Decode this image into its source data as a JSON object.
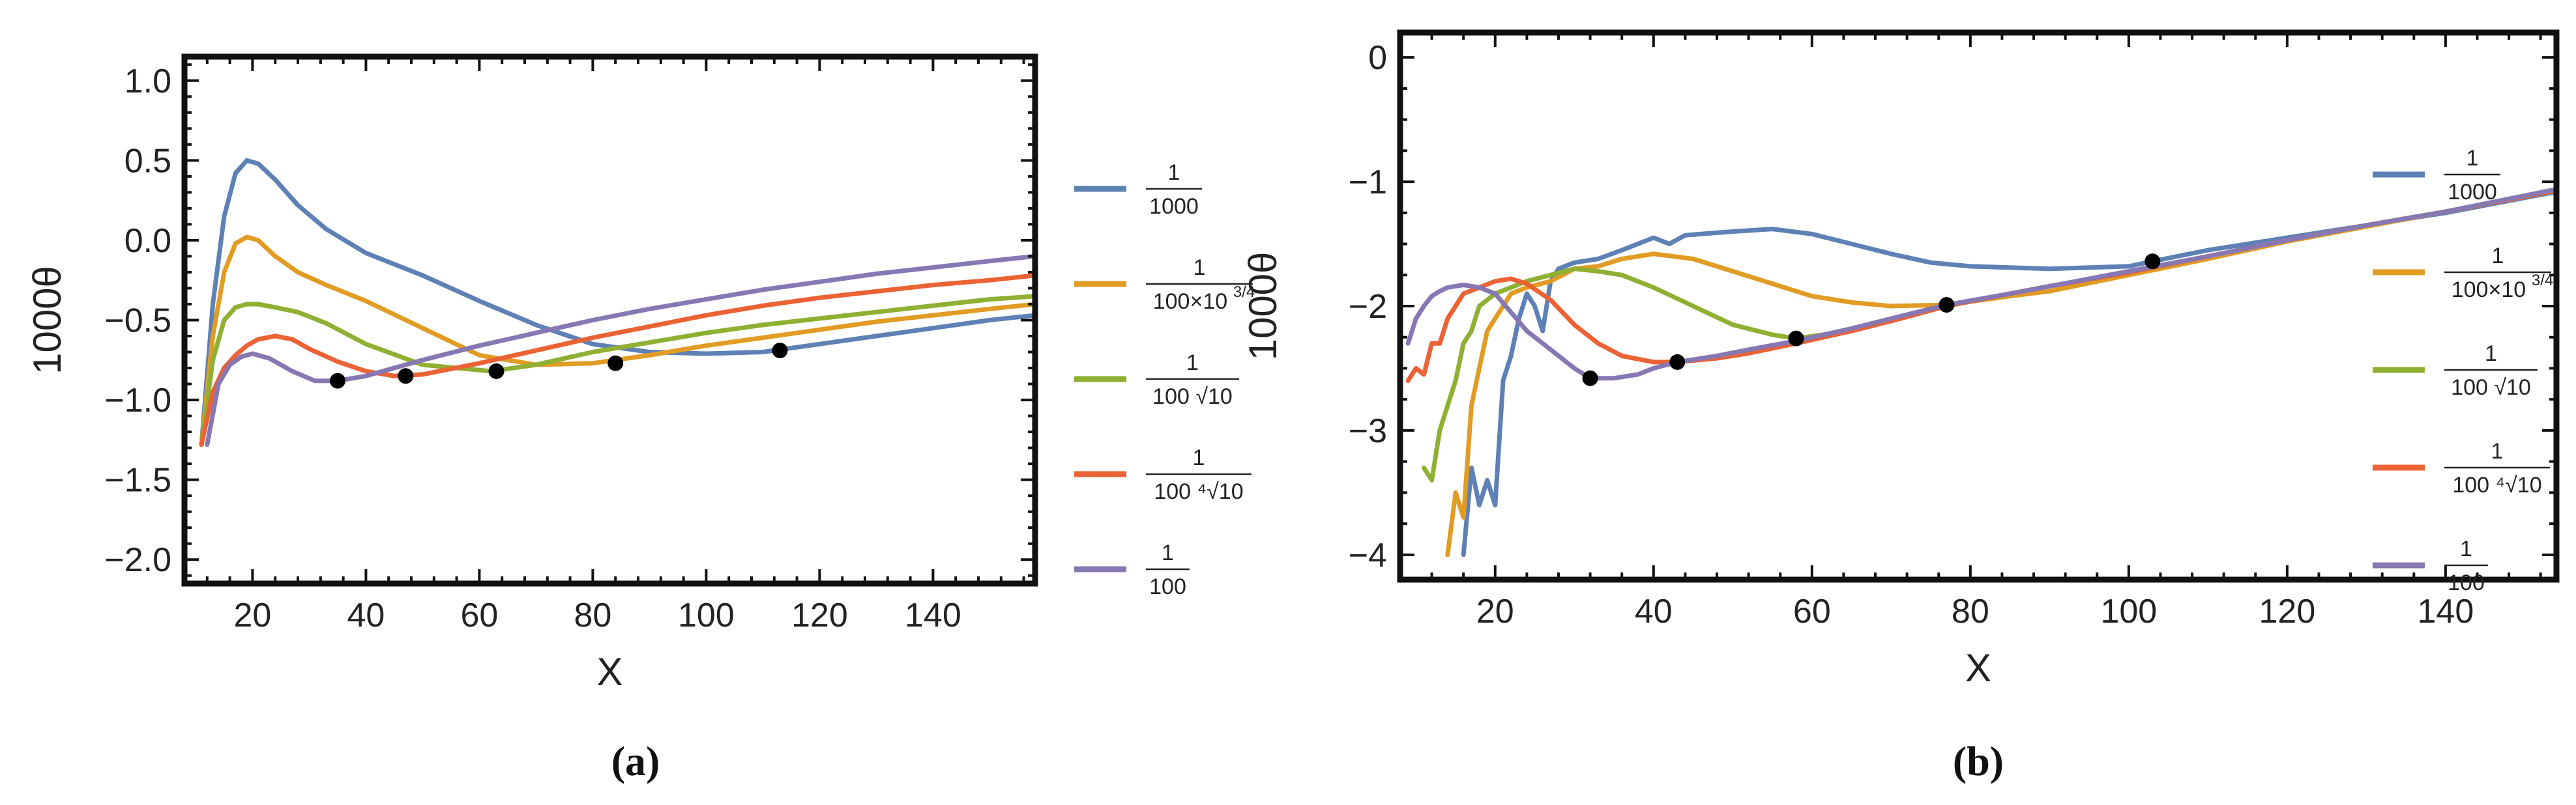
{
  "chart_data": [
    {
      "type": "line",
      "panel": "a",
      "caption": "(a)",
      "xlabel": "X",
      "ylabel": "1000θ",
      "xlim": [
        8,
        158
      ],
      "ylim": [
        -2.15,
        1.15
      ],
      "xticks": [
        20,
        40,
        60,
        80,
        100,
        120,
        140
      ],
      "yticks": [
        1.0,
        0.5,
        0.0,
        -0.5,
        -1.0,
        -1.5,
        -2.0
      ],
      "ytick_labels": [
        "1.0",
        "0.5",
        "0.0",
        "−0.5",
        "−1.0",
        "−1.5",
        "−2.0"
      ],
      "legend_position": "right",
      "series": [
        {
          "name": "1/1000",
          "legend_num": "1",
          "legend_den": "1000",
          "color": "#5e81b5",
          "x": [
            11,
            13,
            15,
            17,
            19,
            21,
            24,
            28,
            33,
            40,
            50,
            60,
            70,
            80,
            90,
            100,
            110,
            120,
            130,
            140,
            150,
            158
          ],
          "y": [
            -1.28,
            -0.4,
            0.15,
            0.42,
            0.5,
            0.48,
            0.38,
            0.22,
            0.07,
            -0.08,
            -0.22,
            -0.38,
            -0.53,
            -0.65,
            -0.7,
            -0.71,
            -0.7,
            -0.65,
            -0.6,
            -0.55,
            -0.5,
            -0.47
          ],
          "marker": {
            "x": 113,
            "y": -0.69
          }
        },
        {
          "name": "1/(100×10^{3/4})",
          "legend_num": "1",
          "legend_den": "100×10",
          "legend_exp": "3/4",
          "color": "#e19c24",
          "x": [
            11,
            13,
            15,
            17,
            19,
            21,
            24,
            28,
            33,
            40,
            50,
            60,
            70,
            80,
            90,
            100,
            110,
            120,
            130,
            140,
            150,
            158
          ],
          "y": [
            -1.28,
            -0.6,
            -0.2,
            -0.02,
            0.02,
            0.0,
            -0.1,
            -0.2,
            -0.28,
            -0.38,
            -0.55,
            -0.72,
            -0.78,
            -0.77,
            -0.72,
            -0.66,
            -0.61,
            -0.56,
            -0.51,
            -0.47,
            -0.43,
            -0.4
          ],
          "marker": {
            "x": 84,
            "y": -0.77
          }
        },
        {
          "name": "1/(100 √10)",
          "legend_num": "1",
          "legend_den": "100 √10",
          "color": "#8fb032",
          "x": [
            11,
            13,
            15,
            17,
            19,
            21,
            24,
            28,
            33,
            40,
            50,
            62,
            70,
            80,
            90,
            100,
            110,
            120,
            130,
            140,
            150,
            158
          ],
          "y": [
            -1.28,
            -0.75,
            -0.5,
            -0.42,
            -0.4,
            -0.4,
            -0.42,
            -0.45,
            -0.52,
            -0.65,
            -0.78,
            -0.82,
            -0.78,
            -0.7,
            -0.64,
            -0.58,
            -0.53,
            -0.49,
            -0.45,
            -0.41,
            -0.37,
            -0.35
          ],
          "marker": {
            "x": 63,
            "y": -0.82
          }
        },
        {
          "name": "1/(100 ⁴√10)",
          "legend_num": "1",
          "legend_den": "100 ⁴√10",
          "color": "#eb6235",
          "x": [
            11,
            13,
            15,
            17,
            19,
            21,
            24,
            27,
            30,
            35,
            40,
            45,
            50,
            60,
            70,
            80,
            90,
            100,
            110,
            120,
            130,
            140,
            150,
            158
          ],
          "y": [
            -1.28,
            -0.95,
            -0.8,
            -0.72,
            -0.66,
            -0.62,
            -0.6,
            -0.62,
            -0.68,
            -0.76,
            -0.82,
            -0.85,
            -0.84,
            -0.77,
            -0.69,
            -0.61,
            -0.54,
            -0.47,
            -0.41,
            -0.36,
            -0.32,
            -0.28,
            -0.25,
            -0.22
          ],
          "marker": {
            "x": 47,
            "y": -0.85
          }
        },
        {
          "name": "1/100",
          "legend_num": "1",
          "legend_den": "100",
          "color": "#8778b3",
          "x": [
            12,
            14,
            16,
            18,
            20,
            23,
            27,
            31,
            35,
            40,
            45,
            50,
            60,
            70,
            80,
            90,
            100,
            110,
            120,
            130,
            140,
            150,
            158
          ],
          "y": [
            -1.28,
            -0.9,
            -0.78,
            -0.73,
            -0.71,
            -0.74,
            -0.82,
            -0.88,
            -0.88,
            -0.85,
            -0.8,
            -0.75,
            -0.66,
            -0.58,
            -0.5,
            -0.43,
            -0.37,
            -0.31,
            -0.26,
            -0.21,
            -0.17,
            -0.13,
            -0.1
          ],
          "marker": {
            "x": 35,
            "y": -0.88
          }
        }
      ]
    },
    {
      "type": "line",
      "panel": "b",
      "caption": "(b)",
      "xlabel": "X",
      "ylabel": "1000θ",
      "xlim": [
        8,
        154
      ],
      "ylim": [
        -4.2,
        0.2
      ],
      "xticks": [
        20,
        40,
        60,
        80,
        100,
        120,
        140
      ],
      "yticks": [
        0,
        -1,
        -2,
        -3,
        -4
      ],
      "ytick_labels": [
        "0",
        "−1",
        "−2",
        "−3",
        "−4"
      ],
      "legend_position": "right",
      "series": [
        {
          "name": "1/1000",
          "legend_num": "1",
          "legend_den": "1000",
          "color": "#5e81b5",
          "x": [
            16,
            17,
            18,
            19,
            20,
            21,
            22,
            23,
            24,
            25,
            26,
            27,
            28,
            30,
            33,
            36,
            40,
            42,
            44,
            46,
            50,
            55,
            60,
            65,
            70,
            75,
            80,
            90,
            100,
            103,
            110,
            120,
            130,
            140,
            154
          ],
          "y": [
            -4.0,
            -3.3,
            -3.6,
            -3.4,
            -3.6,
            -2.6,
            -2.4,
            -2.1,
            -1.9,
            -2.0,
            -2.2,
            -1.8,
            -1.7,
            -1.65,
            -1.62,
            -1.55,
            -1.45,
            -1.5,
            -1.43,
            -1.42,
            -1.4,
            -1.38,
            -1.42,
            -1.5,
            -1.58,
            -1.65,
            -1.68,
            -1.7,
            -1.68,
            -1.64,
            -1.55,
            -1.45,
            -1.35,
            -1.25,
            -1.08
          ],
          "marker": {
            "x": 103,
            "y": -1.64
          }
        },
        {
          "name": "1/(100×10^{3/4})",
          "legend_num": "1",
          "legend_den": "100×10",
          "legend_exp": "3/4",
          "color": "#e19c24",
          "x": [
            14,
            15,
            16,
            17,
            18,
            19,
            20,
            22,
            24,
            27,
            30,
            33,
            36,
            40,
            45,
            50,
            55,
            60,
            65,
            70,
            77,
            85,
            90,
            100,
            110,
            120,
            130,
            140,
            154
          ],
          "y": [
            -4.0,
            -3.5,
            -3.7,
            -2.8,
            -2.5,
            -2.2,
            -2.1,
            -1.9,
            -1.85,
            -1.8,
            -1.7,
            -1.68,
            -1.62,
            -1.58,
            -1.62,
            -1.72,
            -1.82,
            -1.92,
            -1.97,
            -2.0,
            -1.99,
            -1.92,
            -1.88,
            -1.75,
            -1.62,
            -1.48,
            -1.36,
            -1.24,
            -1.07
          ],
          "marker": {
            "x": 77,
            "y": -1.99
          }
        },
        {
          "name": "1/(100 √10)",
          "legend_num": "1",
          "legend_den": "100 √10",
          "color": "#8fb032",
          "x": [
            11,
            12,
            13,
            14,
            15,
            16,
            17,
            18,
            20,
            22,
            24,
            27,
            30,
            33,
            36,
            40,
            45,
            50,
            55,
            58,
            65,
            70,
            77,
            85,
            90,
            100,
            110,
            120,
            130,
            140,
            154
          ],
          "y": [
            -3.3,
            -3.4,
            -3.0,
            -2.8,
            -2.6,
            -2.3,
            -2.2,
            -2.0,
            -1.9,
            -1.85,
            -1.8,
            -1.75,
            -1.7,
            -1.72,
            -1.75,
            -1.85,
            -2.0,
            -2.15,
            -2.23,
            -2.26,
            -2.2,
            -2.12,
            -2.0,
            -1.9,
            -1.84,
            -1.73,
            -1.6,
            -1.47,
            -1.35,
            -1.24,
            -1.07
          ],
          "marker": {
            "x": 58,
            "y": -2.26
          }
        },
        {
          "name": "1/(100 ⁴√10)",
          "legend_num": "1",
          "legend_den": "100 ⁴√10",
          "color": "#eb6235",
          "x": [
            9,
            10,
            11,
            12,
            13,
            14,
            15,
            16,
            18,
            20,
            22,
            24,
            27,
            30,
            33,
            36,
            40,
            43,
            48,
            52,
            58,
            65,
            70,
            77,
            85,
            90,
            100,
            110,
            120,
            130,
            140,
            154
          ],
          "y": [
            -2.6,
            -2.5,
            -2.55,
            -2.3,
            -2.3,
            -2.1,
            -2.0,
            -1.9,
            -1.85,
            -1.8,
            -1.78,
            -1.82,
            -1.95,
            -2.15,
            -2.3,
            -2.4,
            -2.45,
            -2.45,
            -2.42,
            -2.38,
            -2.3,
            -2.2,
            -2.12,
            -2.0,
            -1.9,
            -1.84,
            -1.73,
            -1.6,
            -1.47,
            -1.35,
            -1.24,
            -1.07
          ],
          "marker": {
            "x": 43,
            "y": -2.45
          }
        },
        {
          "name": "1/100",
          "legend_num": "1",
          "legend_den": "100",
          "color": "#8778b3",
          "x": [
            9,
            10,
            11,
            12,
            13,
            14,
            16,
            18,
            20,
            22,
            24,
            27,
            30,
            32,
            35,
            38,
            40,
            43,
            48,
            52,
            58,
            65,
            70,
            77,
            85,
            90,
            100,
            110,
            120,
            130,
            140,
            154
          ],
          "y": [
            -2.3,
            -2.1,
            -2.0,
            -1.92,
            -1.88,
            -1.85,
            -1.83,
            -1.85,
            -1.9,
            -2.05,
            -2.2,
            -2.35,
            -2.5,
            -2.58,
            -2.58,
            -2.55,
            -2.5,
            -2.45,
            -2.4,
            -2.35,
            -2.28,
            -2.18,
            -2.1,
            -1.99,
            -1.9,
            -1.84,
            -1.72,
            -1.6,
            -1.47,
            -1.35,
            -1.24,
            -1.06
          ],
          "marker": {
            "x": 32,
            "y": -2.58
          }
        }
      ]
    }
  ]
}
